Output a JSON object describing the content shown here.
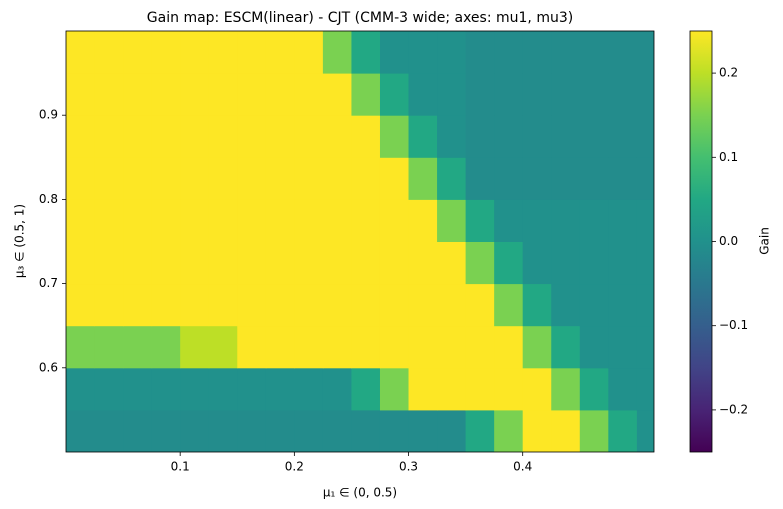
{
  "chart_data": {
    "type": "heatmap",
    "title": "Gain map: ESCM(linear) - CJT (CMM-3 wide; axes: mu1, mu3)",
    "x_label": "μ₁ ∈ (0, 0.5)",
    "y_label": "μ₃ ∈ (0.5, 1)",
    "colorbar_label": "Gain",
    "colormap": "viridis",
    "x": [
      0.0125,
      0.0375,
      0.0625,
      0.0875,
      0.1125,
      0.1375,
      0.1625,
      0.1875,
      0.2125,
      0.2375,
      0.2625,
      0.2875,
      0.3125,
      0.3375,
      0.3625,
      0.3875,
      0.4125,
      0.4375,
      0.4625,
      0.4875,
      0.5125
    ],
    "y": [
      0.525,
      0.575,
      0.625,
      0.675,
      0.725,
      0.775,
      0.825,
      0.875,
      0.925,
      0.975
    ],
    "z": [
      [
        -0.01,
        -0.01,
        -0.01,
        -0.01,
        -0.01,
        -0.01,
        -0.01,
        -0.01,
        -0.01,
        -0.01,
        -0.01,
        -0.01,
        -0.01,
        -0.01,
        0.05,
        0.15,
        0.25,
        0.25,
        0.15,
        0.05,
        0
      ],
      [
        0,
        0,
        0,
        0,
        0,
        0,
        0,
        0,
        0,
        0,
        0.05,
        0.15,
        0.25,
        0.25,
        0.25,
        0.25,
        0.25,
        0.15,
        0.05,
        0,
        0
      ],
      [
        0.15,
        0.15,
        0.15,
        0.15,
        0.2,
        0.2,
        0.25,
        0.25,
        0.25,
        0.25,
        0.25,
        0.25,
        0.25,
        0.25,
        0.25,
        0.25,
        0.15,
        0.05,
        0,
        0,
        0
      ],
      [
        0.25,
        0.25,
        0.25,
        0.25,
        0.25,
        0.25,
        0.25,
        0.25,
        0.25,
        0.25,
        0.25,
        0.25,
        0.25,
        0.25,
        0.25,
        0.15,
        0.05,
        0,
        0,
        0,
        0
      ],
      [
        0.25,
        0.25,
        0.25,
        0.25,
        0.25,
        0.25,
        0.25,
        0.25,
        0.25,
        0.25,
        0.25,
        0.25,
        0.25,
        0.25,
        0.15,
        0.05,
        0,
        0,
        0,
        0,
        0
      ],
      [
        0.25,
        0.25,
        0.25,
        0.25,
        0.25,
        0.25,
        0.25,
        0.25,
        0.25,
        0.25,
        0.25,
        0.25,
        0.25,
        0.15,
        0.05,
        0,
        0,
        0,
        0,
        0,
        0
      ],
      [
        0.25,
        0.25,
        0.25,
        0.25,
        0.25,
        0.25,
        0.25,
        0.25,
        0.25,
        0.25,
        0.25,
        0.25,
        0.15,
        0.05,
        -0.01,
        -0.01,
        -0.01,
        -0.01,
        -0.01,
        -0.01,
        -0.01
      ],
      [
        0.25,
        0.25,
        0.25,
        0.25,
        0.25,
        0.25,
        0.25,
        0.25,
        0.25,
        0.25,
        0.25,
        0.15,
        0.05,
        0,
        -0.01,
        -0.01,
        -0.01,
        -0.01,
        -0.01,
        -0.01,
        -0.01
      ],
      [
        0.25,
        0.25,
        0.25,
        0.25,
        0.25,
        0.25,
        0.25,
        0.25,
        0.25,
        0.25,
        0.15,
        0.05,
        0,
        0,
        -0.01,
        -0.01,
        -0.01,
        -0.01,
        -0.01,
        -0.01,
        -0.01
      ],
      [
        0.25,
        0.25,
        0.25,
        0.25,
        0.25,
        0.25,
        0.25,
        0.25,
        0.25,
        0.15,
        0.05,
        0,
        0,
        0,
        -0.01,
        -0.01,
        -0.01,
        -0.01,
        -0.01,
        -0.01,
        -0.01
      ]
    ],
    "xlim": [
      0,
      0.515
    ],
    "ylim": [
      0.5,
      1.0
    ],
    "xticks": [
      0.1,
      0.2,
      0.3,
      0.4
    ],
    "yticks": [
      0.6,
      0.7,
      0.8,
      0.9
    ],
    "clim": [
      -0.25,
      0.25
    ],
    "cticks": [
      {
        "value": -0.2,
        "label": "−0.2"
      },
      {
        "value": -0.1,
        "label": "−0.1"
      },
      {
        "value": 0,
        "label": "0.0"
      },
      0.1,
      0.2
    ]
  }
}
